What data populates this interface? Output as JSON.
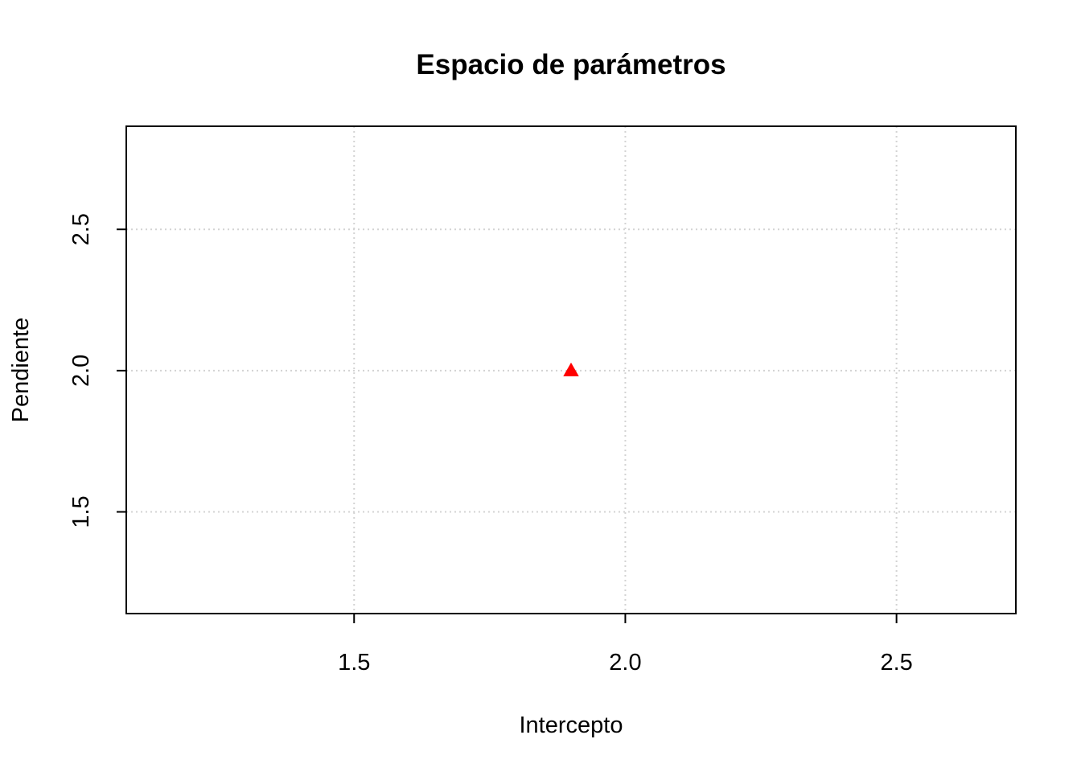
{
  "chart_data": {
    "type": "scatter",
    "title": "Espacio de parámetros",
    "xlabel": "Intercepto",
    "ylabel": "Pendiente",
    "xlim": [
      1.08,
      2.72
    ],
    "ylim": [
      1.14,
      2.865
    ],
    "x_ticks": [
      1.5,
      2.0,
      2.5
    ],
    "x_tick_labels": [
      "1.5",
      "2.0",
      "2.5"
    ],
    "y_ticks": [
      1.5,
      2.0,
      2.5
    ],
    "y_tick_labels": [
      "1.5",
      "2.0",
      "2.5"
    ],
    "grid": true,
    "grid_style": "dotted",
    "grid_color": "#d3d3d3",
    "legend": "none",
    "points": [
      {
        "x": 1.9,
        "y": 2.0,
        "marker": "triangle",
        "color": "#ff0000"
      }
    ]
  }
}
